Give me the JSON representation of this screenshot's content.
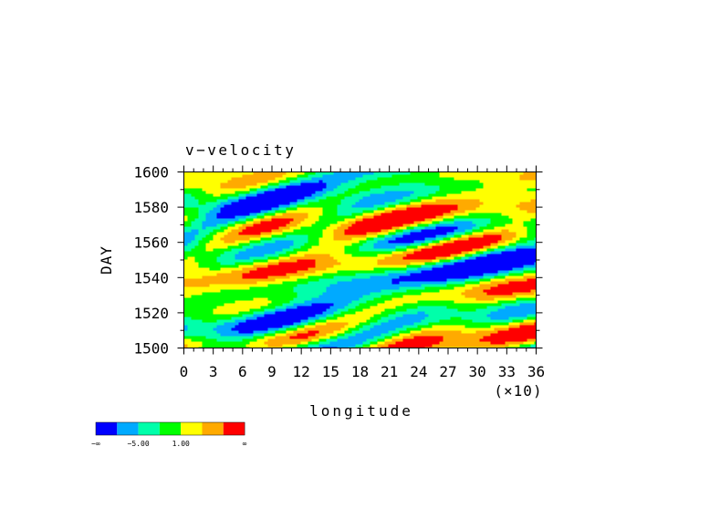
{
  "chart_data": {
    "type": "heatmap",
    "title": "v−velocity",
    "xlabel": "longitude",
    "ylabel": "DAY",
    "x_multiplier": "(×10)",
    "xlim": [
      0,
      36
    ],
    "ylim": [
      1500,
      1600
    ],
    "x_ticks": [
      "0",
      "3",
      "6",
      "9",
      "12",
      "15",
      "18",
      "21",
      "24",
      "27",
      "30",
      "33",
      "36"
    ],
    "y_ticks": [
      "1500",
      "1520",
      "1540",
      "1560",
      "1580",
      "1600"
    ],
    "grid": false,
    "colorbar": {
      "colors": [
        "#0000ff",
        "#00aaff",
        "#00ffaa",
        "#00ff00",
        "#ffff00",
        "#ffaa00",
        "#ff0000"
      ],
      "labels": [
        "−∞",
        "−5.00",
        "1.00",
        "∞"
      ]
    }
  }
}
